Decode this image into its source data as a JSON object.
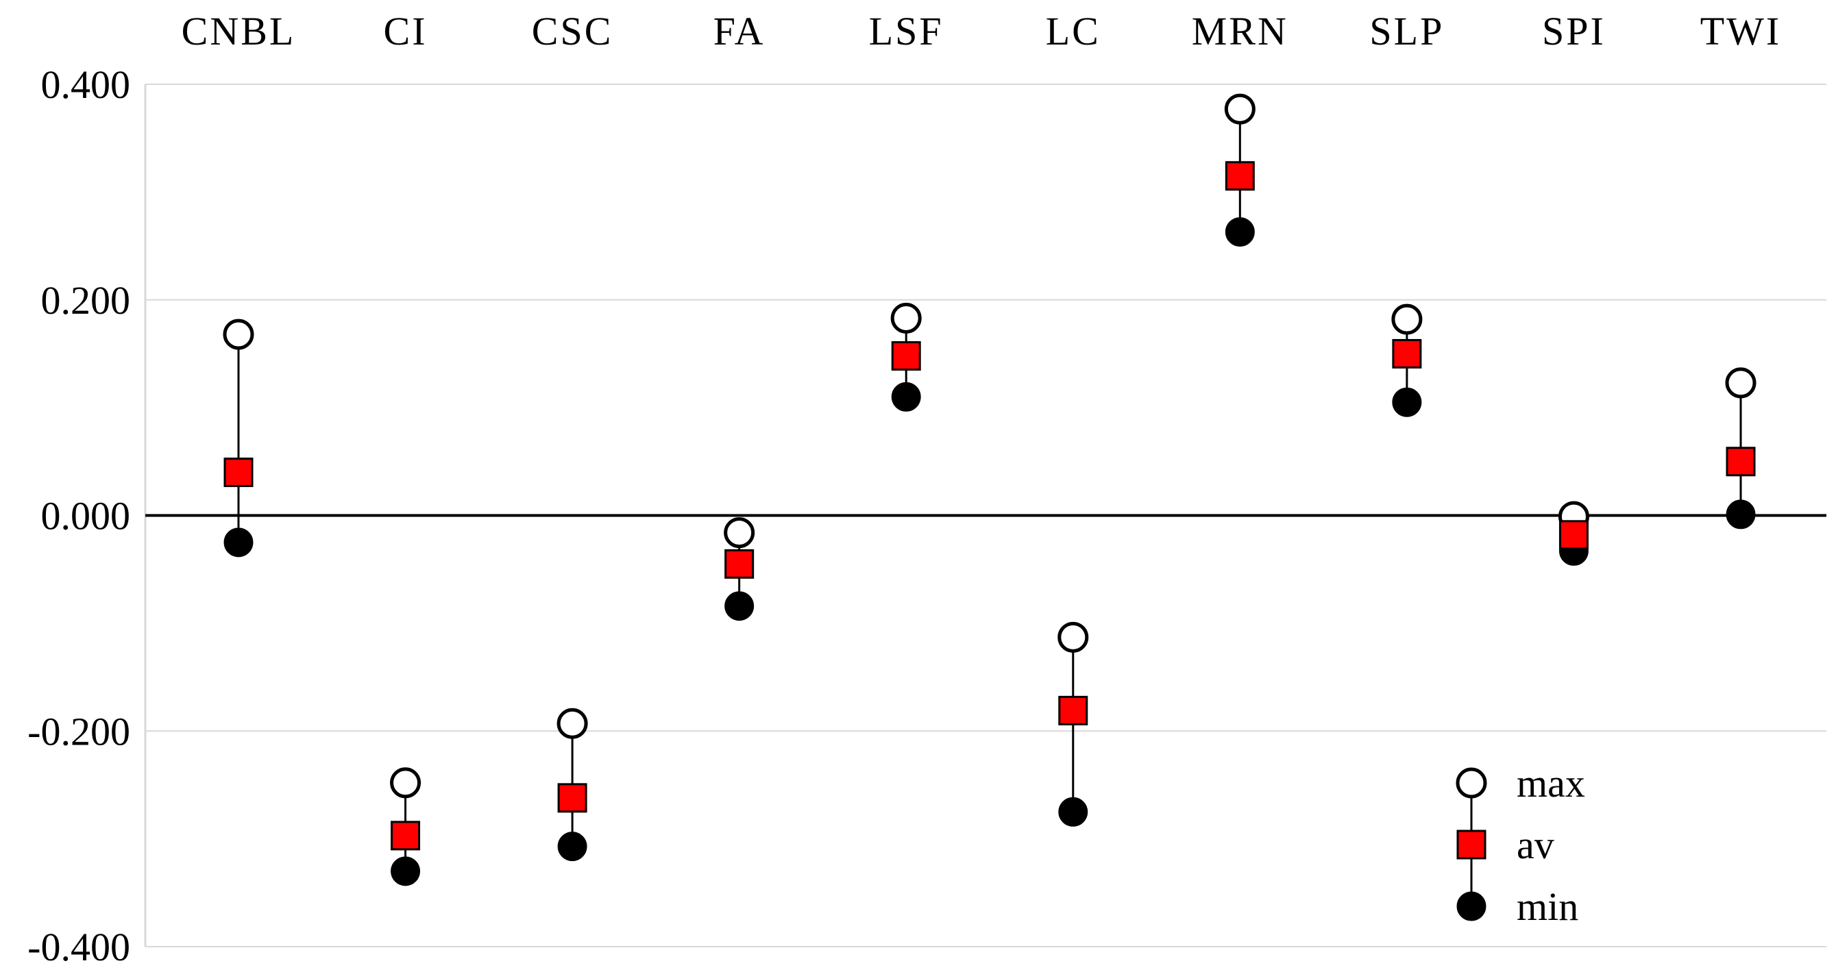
{
  "chart_data": {
    "type": "scatter",
    "title": "",
    "xlabel": "",
    "ylabel": "",
    "categories": [
      "CNBL",
      "CI",
      "CSC",
      "FA",
      "LSF",
      "LC",
      "MRN",
      "SLP",
      "SPI",
      "TWI"
    ],
    "series": [
      {
        "name": "max",
        "values": [
          0.168,
          -0.248,
          -0.193,
          -0.016,
          0.183,
          -0.113,
          0.377,
          0.182,
          -0.001,
          0.123
        ]
      },
      {
        "name": "av",
        "values": [
          0.04,
          -0.297,
          -0.262,
          -0.045,
          0.148,
          -0.181,
          0.315,
          0.15,
          -0.018,
          0.05
        ]
      },
      {
        "name": "min",
        "values": [
          -0.025,
          -0.33,
          -0.307,
          -0.084,
          0.11,
          -0.275,
          0.263,
          0.105,
          -0.033,
          0.001
        ]
      }
    ],
    "ylim": [
      -0.4,
      0.4
    ],
    "yticks": [
      "0.400",
      "0.200",
      "0.000",
      "-0.200",
      "-0.400"
    ],
    "grid": true,
    "legend_position": "bottom-right",
    "colors": {
      "av_fill": "#ff0000",
      "marker_stroke": "#000000",
      "grid": "#d9d9d9",
      "min_fill": "#000000",
      "max_fill": "#ffffff"
    }
  }
}
